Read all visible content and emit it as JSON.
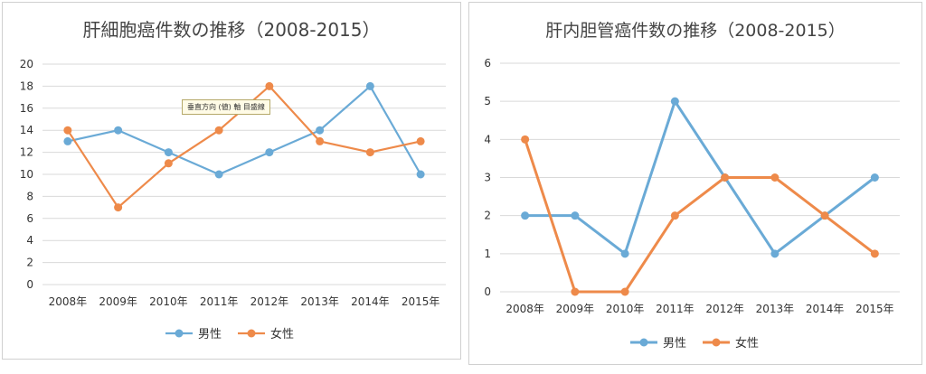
{
  "tooltip_text": "垂直方向 (値) 軸 目盛線",
  "chart_data": [
    {
      "type": "line",
      "title": "肝細胞癌件数の推移（2008-2015）",
      "categories": [
        "2008年",
        "2009年",
        "2010年",
        "2011年",
        "2012年",
        "2013年",
        "2014年",
        "2015年"
      ],
      "series": [
        {
          "name": "男性",
          "color": "#6aaad6",
          "values": [
            13,
            14,
            12,
            10,
            12,
            14,
            18,
            10
          ]
        },
        {
          "name": "女性",
          "color": "#ee8a4a",
          "values": [
            14,
            7,
            11,
            14,
            18,
            13,
            12,
            13
          ]
        }
      ],
      "ylim": [
        0,
        20
      ],
      "yticks": [
        0,
        2,
        4,
        6,
        8,
        10,
        12,
        14,
        16,
        18,
        20
      ],
      "grid": true,
      "legend": "bottom"
    },
    {
      "type": "line",
      "title": "肝内胆管癌件数の推移（2008-2015）",
      "categories": [
        "2008年",
        "2009年",
        "2010年",
        "2011年",
        "2012年",
        "2013年",
        "2014年",
        "2015年"
      ],
      "series": [
        {
          "name": "男性",
          "color": "#6aaad6",
          "values": [
            2,
            2,
            1,
            5,
            3,
            1,
            2,
            3
          ]
        },
        {
          "name": "女性",
          "color": "#ee8a4a",
          "values": [
            4,
            0,
            0,
            2,
            3,
            3,
            2,
            1
          ]
        }
      ],
      "ylim": [
        0,
        6
      ],
      "yticks": [
        0,
        1,
        2,
        3,
        4,
        5,
        6
      ],
      "grid": true,
      "legend": "bottom"
    }
  ]
}
